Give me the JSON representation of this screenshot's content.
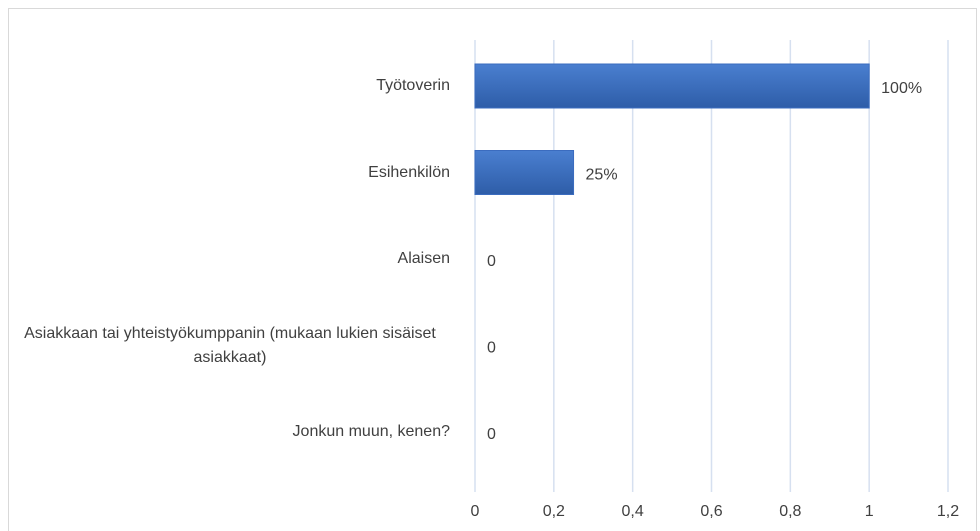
{
  "chart_data": {
    "type": "hbar",
    "categories": [
      "Työtoverin",
      "Esihenkilön",
      "Alaisen",
      "Asiakkaan tai yhteistyökumppanin (mukaan lukien sisäiset asiakkaat)",
      "Jonkun muun, kenen?"
    ],
    "values": [
      1,
      0.25,
      0,
      0,
      0
    ],
    "value_labels": [
      "100%",
      "25%",
      "0",
      "0",
      "0"
    ],
    "color": "#3b6cbf",
    "xlim": [
      0,
      1.2
    ],
    "xticks": [
      0,
      {
        "value": 0.2,
        "label": "0,2"
      },
      {
        "value": 0.4,
        "label": "0,4"
      },
      {
        "value": 0.6,
        "label": "0,6"
      },
      {
        "value": 0.8,
        "label": "0,8"
      },
      1,
      {
        "value": 1.2,
        "label": "1,2"
      }
    ],
    "grid": true
  }
}
